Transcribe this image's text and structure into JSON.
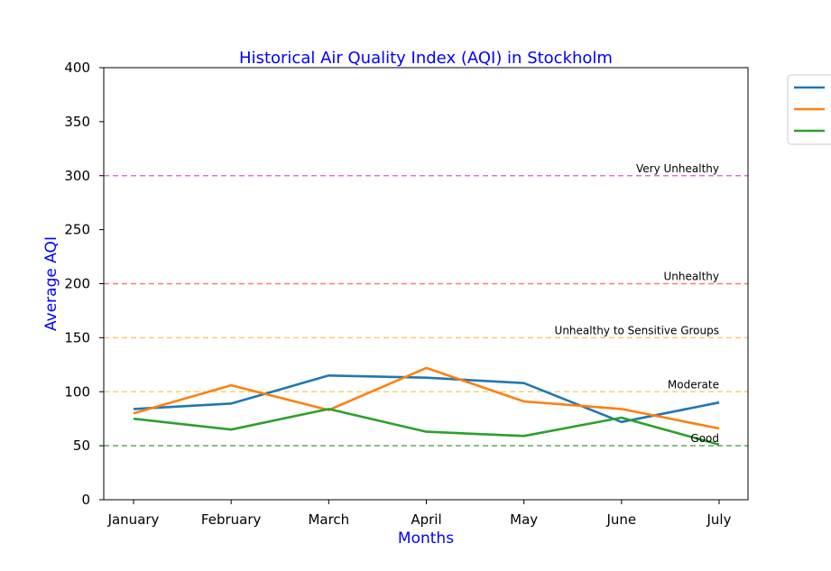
{
  "chart_data": {
    "type": "line",
    "title": "Historical Air Quality Index (AQI) in Stockholm",
    "xlabel": "Months",
    "ylabel": "Average AQI",
    "title_color": "#0000ff",
    "label_color": "#0000ff",
    "categories": [
      "January",
      "February",
      "March",
      "April",
      "May",
      "June",
      "July"
    ],
    "ylim": [
      0,
      400
    ],
    "yticks": [
      0,
      50,
      100,
      150,
      200,
      250,
      300,
      350,
      400
    ],
    "grid": false,
    "legend": {
      "placement": "upper right, outside plot area",
      "entries_text_visible": false
    },
    "series": [
      {
        "color": "#1f77b4",
        "values": [
          84,
          89,
          115,
          113,
          108,
          72,
          90
        ]
      },
      {
        "color": "#ff7f0e",
        "values": [
          80,
          106,
          83,
          122,
          91,
          84,
          66
        ]
      },
      {
        "color": "#2ca02c",
        "values": [
          75,
          65,
          84,
          63,
          59,
          76,
          51
        ]
      }
    ],
    "thresholds": [
      {
        "label": "Good",
        "value": 50,
        "color": "#2e8b2e"
      },
      {
        "label": "Moderate",
        "value": 100,
        "color": "#e6c84a"
      },
      {
        "label": "Unhealthy to Sensitive Groups",
        "value": 150,
        "color": "#ffb347"
      },
      {
        "label": "Unhealthy",
        "value": 200,
        "color": "#ff4c4c"
      },
      {
        "label": "Very Unhealthy",
        "value": 300,
        "color": "#cc44cc"
      }
    ]
  }
}
